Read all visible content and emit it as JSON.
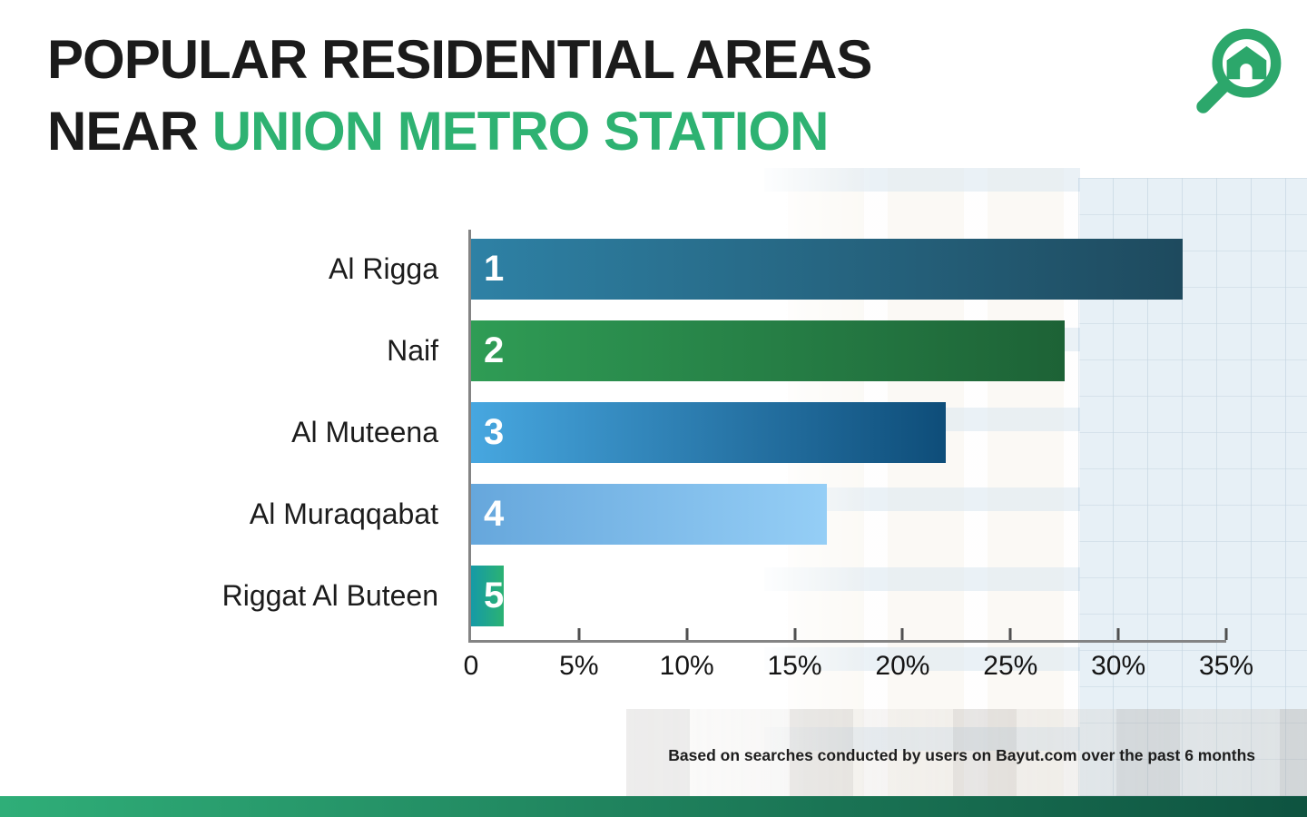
{
  "header": {
    "title_line1": "POPULAR RESIDENTIAL AREAS",
    "title_line2_prefix": "NEAR ",
    "title_line2_highlight": "UNION METRO STATION",
    "logo": "bayut-magnifier-house-logo"
  },
  "chart_data": {
    "type": "bar",
    "orientation": "horizontal",
    "categories": [
      "Al Rigga",
      "Naif",
      "Al Muteena",
      "Al Muraqqabat",
      "Riggat Al Buteen"
    ],
    "ranks": [
      "1",
      "2",
      "3",
      "4",
      "5"
    ],
    "values": [
      33,
      27.5,
      22,
      16.5,
      1.5
    ],
    "xlim": [
      0,
      35
    ],
    "x_ticks": [
      "0",
      "5%",
      "10%",
      "15%",
      "20%",
      "25%",
      "30%",
      "35%"
    ],
    "grid": false,
    "legend": false,
    "bar_gradients": [
      [
        "#2e81a5",
        "#1e4a5e"
      ],
      [
        "#2f9c55",
        "#1d6236"
      ],
      [
        "#47a7e0",
        "#0e4d79"
      ],
      [
        "#66a7dc",
        "#95cef6"
      ],
      [
        "#159aa6",
        "#2bb273"
      ]
    ]
  },
  "footer": {
    "source_note": "Based on searches conducted by users on Bayut.com over the past 6 months"
  },
  "colors": {
    "accent_green": "#2eb272",
    "logo_green": "#2ca76b",
    "title_color": "#1b1b1b",
    "axis_color": "#848484",
    "bottom_bar_gradient": [
      "#2fae78",
      "#0e5340"
    ]
  }
}
